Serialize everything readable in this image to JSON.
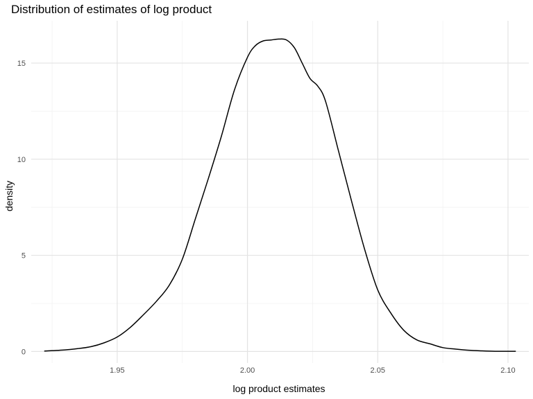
{
  "chart_data": {
    "type": "line",
    "title": "Distribution of estimates of log product",
    "xlabel": "log product estimates",
    "ylabel": "density",
    "xlim": [
      1.917,
      2.108
    ],
    "ylim": [
      -0.6,
      17.2
    ],
    "x_ticks": [
      1.95,
      2.0,
      2.05,
      2.1
    ],
    "x_tick_labels": [
      "1.95",
      "2.00",
      "2.05",
      "2.10"
    ],
    "x_minor_ticks": [
      1.925,
      1.975,
      2.025,
      2.075
    ],
    "y_ticks": [
      0,
      5,
      10,
      15
    ],
    "y_tick_labels": [
      "0",
      "5",
      "10",
      "15"
    ],
    "y_minor_ticks": [
      2.5,
      7.5,
      12.5
    ],
    "grid": true,
    "legend": "none",
    "series": [
      {
        "color": "#000000",
        "x": [
          1.922,
          1.93,
          1.935,
          1.94,
          1.945,
          1.95,
          1.955,
          1.96,
          1.965,
          1.97,
          1.975,
          1.98,
          1.985,
          1.99,
          1.995,
          2.0,
          2.003,
          2.006,
          2.009,
          2.012,
          2.015,
          2.018,
          2.021,
          2.024,
          2.027,
          2.03,
          2.035,
          2.04,
          2.045,
          2.05,
          2.055,
          2.06,
          2.065,
          2.07,
          2.075,
          2.08,
          2.085,
          2.09,
          2.095,
          2.1,
          2.103
        ],
        "y": [
          0.02,
          0.08,
          0.15,
          0.25,
          0.45,
          0.75,
          1.25,
          1.9,
          2.6,
          3.45,
          4.8,
          6.9,
          9.0,
          11.2,
          13.6,
          15.3,
          15.9,
          16.15,
          16.2,
          16.25,
          16.2,
          15.8,
          15.0,
          14.2,
          13.8,
          13.0,
          10.4,
          7.8,
          5.3,
          3.2,
          2.0,
          1.1,
          0.6,
          0.4,
          0.2,
          0.12,
          0.06,
          0.03,
          0.01,
          0.01,
          0.01
        ]
      }
    ]
  }
}
